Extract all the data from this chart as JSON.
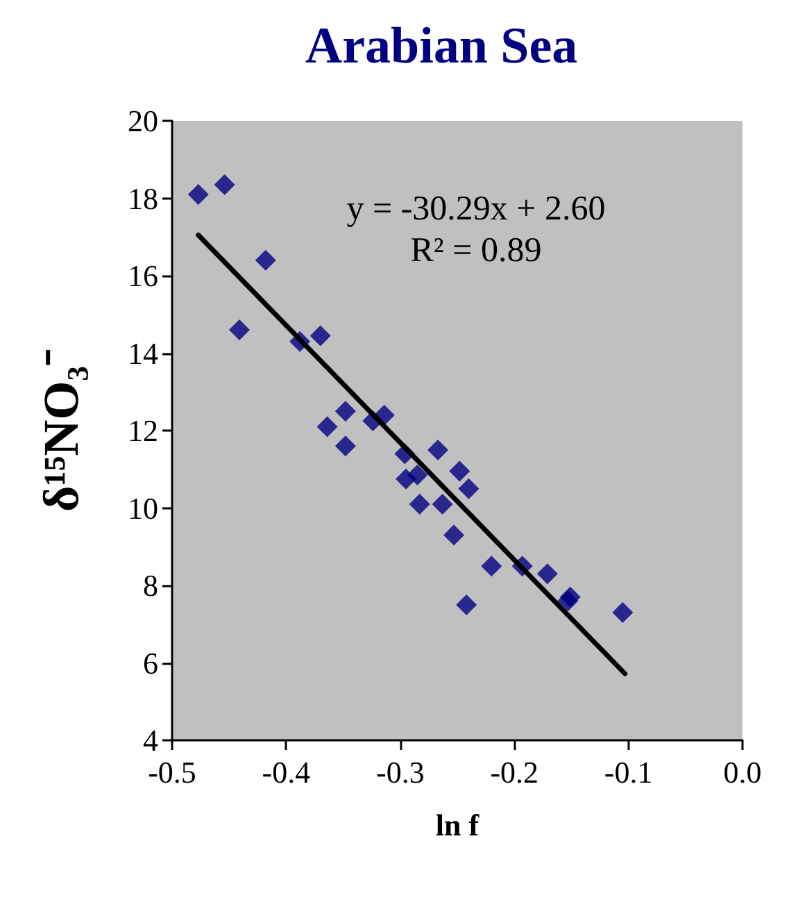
{
  "chart_data": {
    "type": "scatter",
    "title": "Arabian Sea",
    "xlabel": "ln f",
    "ylabel": "δ¹⁵NO₃⁻",
    "marker": "diamond",
    "grid": false,
    "annotations": [
      "y = -30.29x + 2.60",
      "R² = 0.89"
    ],
    "xlim": [
      -0.5,
      0.0
    ],
    "xticks": [
      {
        "value": -0.5,
        "label": "-0.5"
      },
      {
        "value": -0.4,
        "label": "-0.4"
      },
      {
        "value": -0.3,
        "label": "-0.3"
      },
      {
        "value": -0.2,
        "label": "-0.2"
      },
      {
        "value": -0.1,
        "label": "-0.1"
      },
      {
        "value": 0,
        "label": "0.0"
      }
    ],
    "ylim": [
      4,
      20
    ],
    "yticks": [
      4,
      6,
      8,
      10,
      12,
      14,
      16,
      18,
      20
    ],
    "series": [
      {
        "color": "#000080",
        "x": [
          -0.477,
          -0.454,
          -0.441,
          -0.418,
          -0.388,
          -0.37,
          -0.364,
          -0.348,
          -0.348,
          -0.324,
          -0.314,
          -0.296,
          -0.295,
          -0.285,
          -0.283,
          -0.267,
          -0.263,
          -0.253,
          -0.248,
          -0.24,
          -0.242,
          -0.22,
          -0.193,
          -0.171,
          -0.153,
          -0.151,
          -0.105
        ],
        "values": [
          18.1,
          18.35,
          14.6,
          16.4,
          14.3,
          14.45,
          12.1,
          11.6,
          12.5,
          12.25,
          12.4,
          11.4,
          10.75,
          10.85,
          10.1,
          11.5,
          10.1,
          9.3,
          10.95,
          10.5,
          7.5,
          8.5,
          8.5,
          8.3,
          7.6,
          7.7,
          7.3
        ]
      },
      {
        "type": "line",
        "color": "#000000",
        "marker": "none",
        "x": [
          -0.477,
          -0.103
        ],
        "values": [
          17.05,
          5.72
        ]
      }
    ]
  }
}
